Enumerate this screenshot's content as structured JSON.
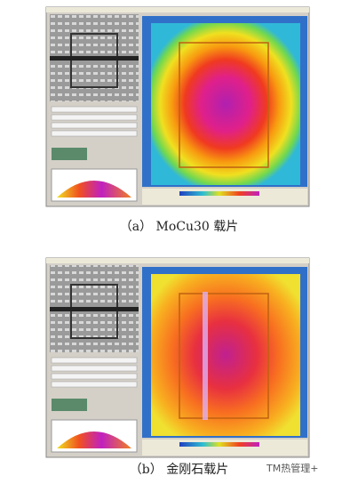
{
  "figure": {
    "panels": [
      {
        "caption": "（a） MoCu30 载片"
      },
      {
        "caption": "（b） 金刚石载片"
      }
    ]
  },
  "watermark": "TM热管理+"
}
